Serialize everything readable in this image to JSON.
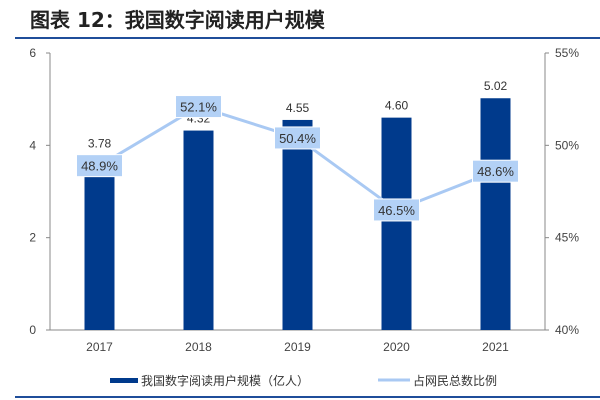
{
  "title": "图表 12：我国数字阅读用户规模",
  "chart_data": {
    "type": "bar+line",
    "categories": [
      "2017",
      "2018",
      "2019",
      "2020",
      "2021"
    ],
    "series": [
      {
        "name": "我国数字阅读用户规模（亿人）",
        "type": "bar",
        "axis": "left",
        "values": [
          3.78,
          4.32,
          4.55,
          4.6,
          5.02
        ],
        "labels": [
          "3.78",
          "4.32",
          "4.55",
          "4.60",
          "5.02"
        ],
        "color": "#003a8c"
      },
      {
        "name": "占网民总数比例",
        "type": "line",
        "axis": "right",
        "values": [
          48.9,
          52.1,
          50.4,
          46.5,
          48.6
        ],
        "labels": [
          "48.9%",
          "52.1%",
          "50.4%",
          "46.5%",
          "48.6%"
        ],
        "color": "#a9c9f3"
      }
    ],
    "y_left": {
      "range": [
        0,
        6
      ],
      "ticks": [
        "0",
        "2",
        "4",
        "6"
      ]
    },
    "y_right": {
      "range": [
        40,
        55
      ],
      "ticks": [
        "40%",
        "45%",
        "50%",
        "55%"
      ]
    },
    "grid": false,
    "legend": "bottom"
  }
}
